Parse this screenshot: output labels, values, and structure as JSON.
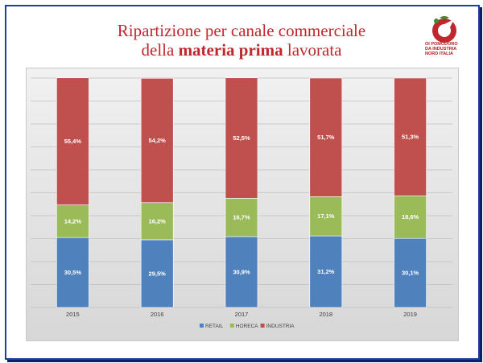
{
  "title": {
    "line1": "Ripartizione per canale commerciale",
    "line2_prefix": "della ",
    "line2_bold": "materia prima",
    "line2_suffix": " lavorata"
  },
  "logo": {
    "line1": "OI POMODORO",
    "line2": "DA INDUSTRIA",
    "line3": "NORD ITALIA"
  },
  "colors": {
    "retail": "#4f81bd",
    "horeca": "#9bbb59",
    "industria": "#c0504d",
    "title": "#c0272d"
  },
  "chart_data": {
    "type": "bar",
    "stacked": true,
    "categories": [
      "2015",
      "2016",
      "2017",
      "2018",
      "2019"
    ],
    "series": [
      {
        "name": "RETAIL",
        "values": [
          30.5,
          29.5,
          30.9,
          31.2,
          30.1
        ],
        "labels": [
          "30,5%",
          "29,5%",
          "30,9%",
          "31,2%",
          "30,1%"
        ]
      },
      {
        "name": "HORECA",
        "values": [
          14.2,
          16.2,
          16.7,
          17.1,
          18.6
        ],
        "labels": [
          "14,2%",
          "16,2%",
          "16,7%",
          "17,1%",
          "18,6%"
        ]
      },
      {
        "name": "INDUSTRIA",
        "values": [
          55.4,
          54.2,
          52.5,
          51.7,
          51.3
        ],
        "labels": [
          "55,4%",
          "54,2%",
          "52,5%",
          "51,7%",
          "51,3%"
        ]
      }
    ],
    "ylim": [
      0,
      100
    ],
    "gridlines": true,
    "legend_position": "bottom",
    "title": "",
    "xlabel": "",
    "ylabel": ""
  }
}
